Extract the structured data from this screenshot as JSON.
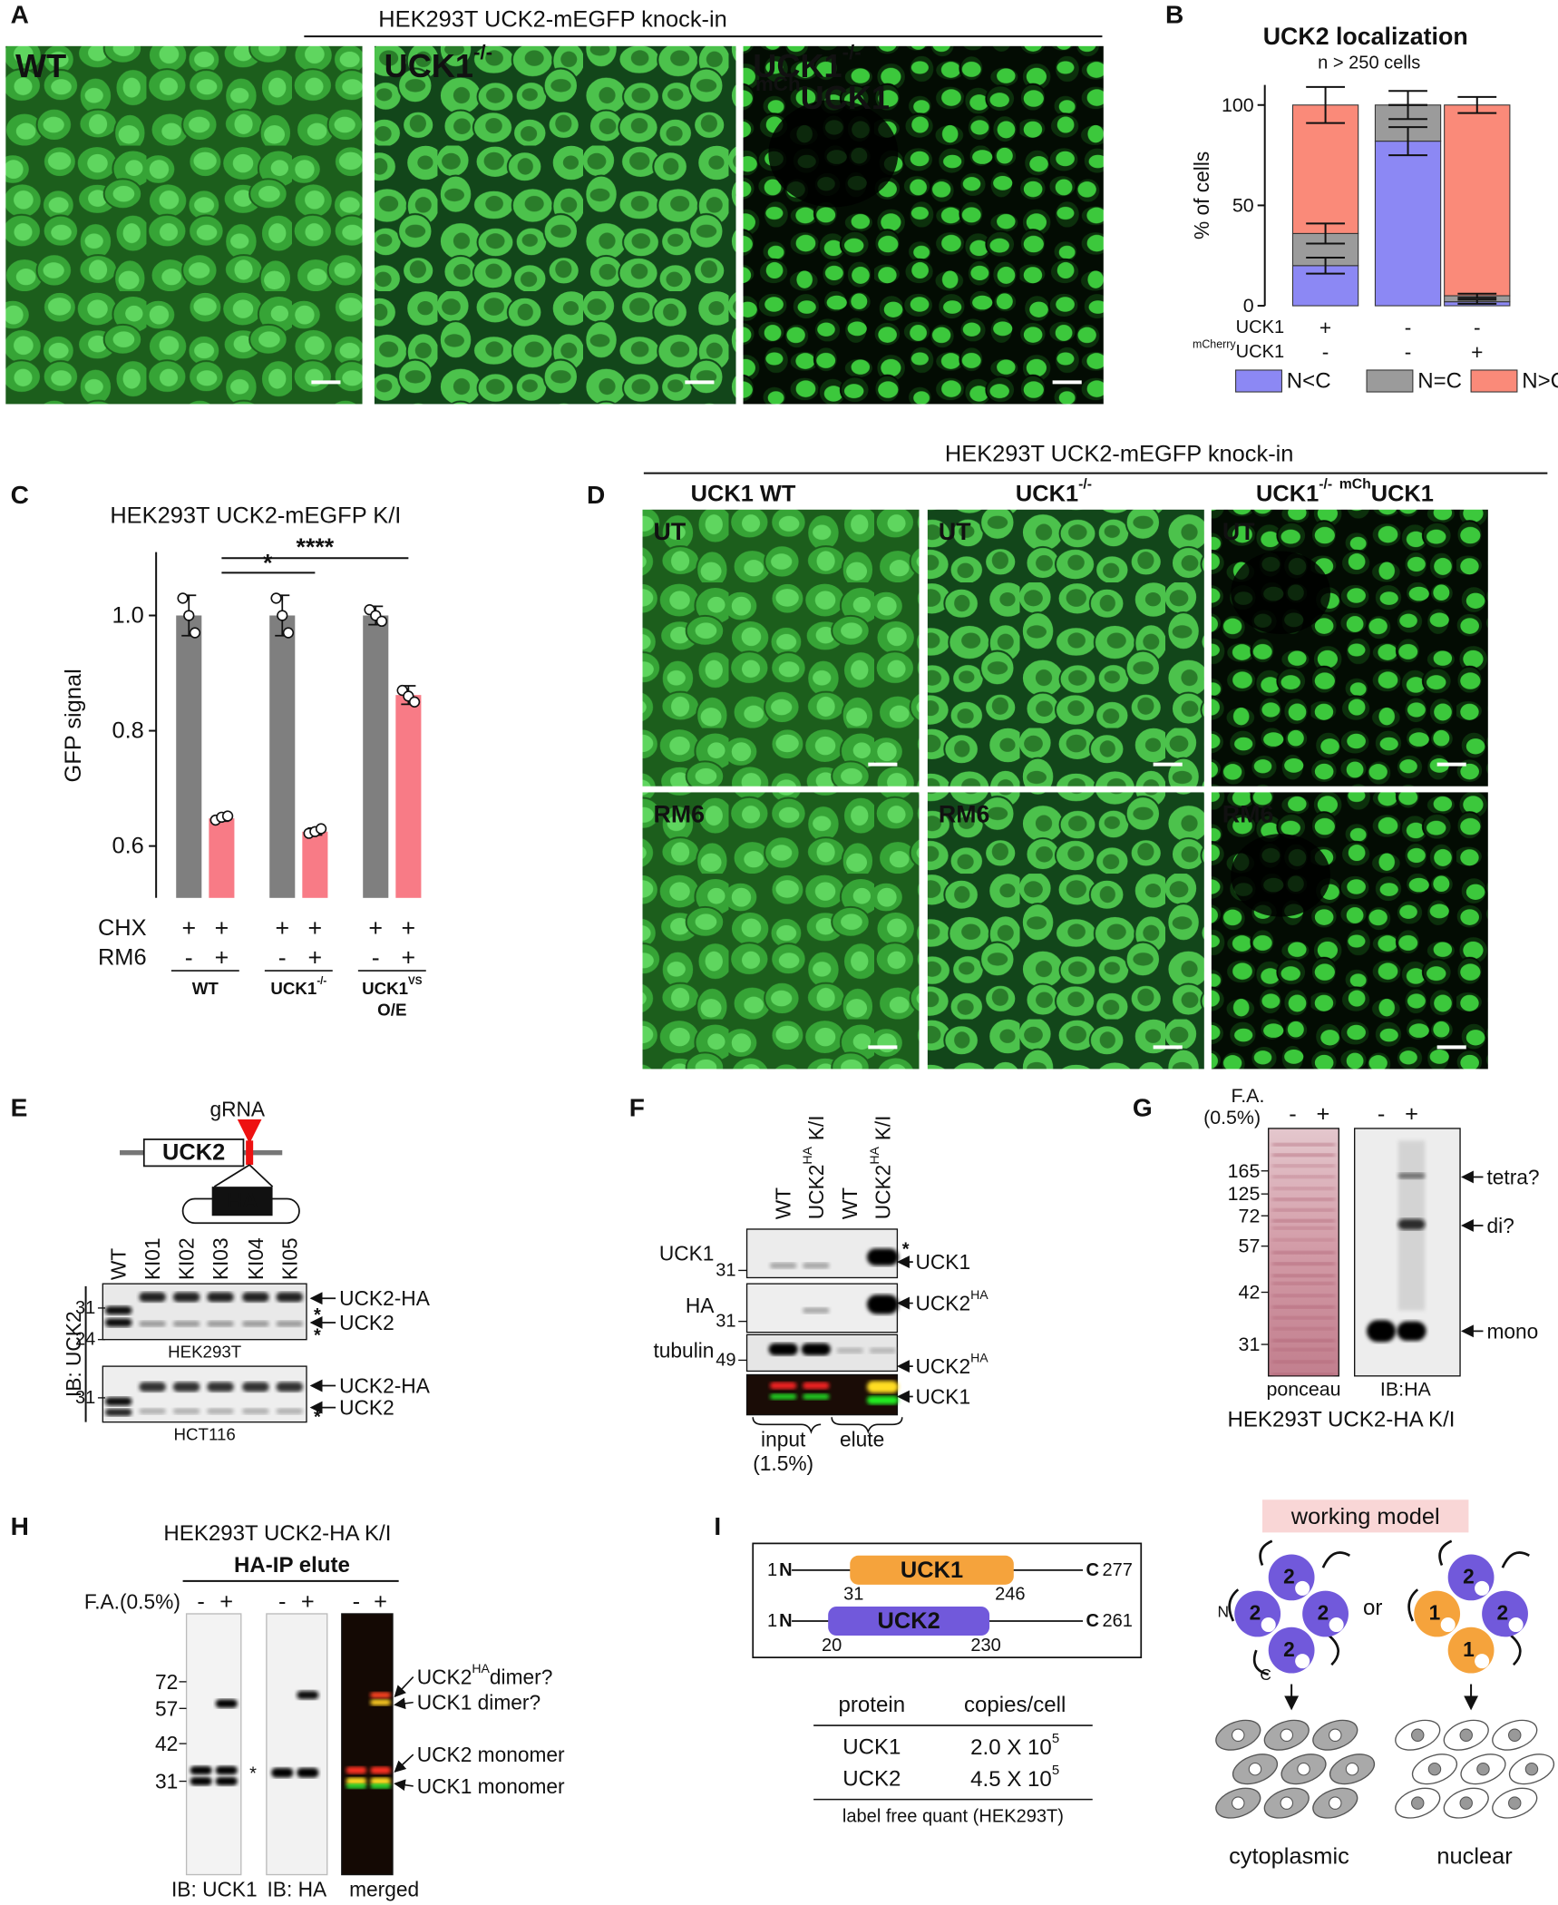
{
  "panel_a": {
    "label": "A",
    "title": "HEK293T UCK2-mEGFP knock-in",
    "images": [
      {
        "label": "WT"
      },
      {
        "label": "UCK1",
        "label_sup": "-/-"
      },
      {
        "label": "UCK1",
        "label_sup": "-/-",
        "label2_sup": "mCh",
        "label2": "UCK1"
      }
    ]
  },
  "chart_data": [
    {
      "type": "stacked-bar",
      "panel_label": "B",
      "title": "UCK2 localization",
      "subtitle": "n > 250 cells",
      "y_label": "% of cells",
      "ylim": [
        0,
        110
      ],
      "yticks": [
        0,
        50,
        100
      ],
      "condition_rows": [
        {
          "name": "UCK1",
          "values": [
            "+",
            "-",
            "-"
          ]
        },
        {
          "name": "UCK1",
          "name_sup": "mCherry",
          "values": [
            "-",
            "-",
            "+"
          ]
        }
      ],
      "series": [
        {
          "name": "N<C",
          "color": "#8c88f4",
          "values": [
            20,
            82,
            2
          ],
          "errors": [
            4,
            7,
            1
          ]
        },
        {
          "name": "N=C",
          "color": "#9b9b9b",
          "values": [
            16,
            18,
            3
          ],
          "errors": [
            5,
            7,
            1
          ]
        },
        {
          "name": "N>C",
          "color": "#fa8a79",
          "values": [
            64,
            0,
            95
          ],
          "errors": [
            9,
            0,
            4
          ]
        }
      ]
    },
    {
      "type": "bar",
      "panel_label": "C",
      "title": "HEK293T UCK2-mEGFP K/I",
      "y_label": "GFP signal",
      "ylim": [
        0.51,
        1.11
      ],
      "yticks": [
        {
          "value": 0.6,
          "label": "0.6"
        },
        {
          "value": 0.8,
          "label": "0.8"
        },
        {
          "value": 1,
          "label": "1.0"
        }
      ],
      "values": [
        1,
        0.648,
        1,
        0.625,
        1,
        0.862
      ],
      "errors": [
        0.035,
        0.005,
        0.035,
        0.006,
        0.016,
        0.016
      ],
      "colors": [
        "#7f7f7f",
        "#f87b86",
        "#7f7f7f",
        "#f87b86",
        "#7f7f7f",
        "#f87b86"
      ],
      "points": [
        [
          1.03,
          1.0,
          0.97
        ],
        [
          0.645,
          0.65,
          0.652
        ],
        [
          1.03,
          1.0,
          0.97
        ],
        [
          0.622,
          0.625,
          0.63
        ],
        [
          1.01,
          1.0,
          0.99
        ],
        [
          0.87,
          0.86,
          0.85
        ]
      ],
      "condition_rows": [
        {
          "name": "CHX",
          "values": [
            "+",
            "+",
            "+",
            "+",
            "+",
            "+"
          ]
        },
        {
          "name": "RM6",
          "values": [
            "-",
            "+",
            "-",
            "+",
            "-",
            "+"
          ]
        }
      ],
      "groups": [
        {
          "label": "WT"
        },
        {
          "label": "UCK1",
          "label_sup": "-/-"
        },
        {
          "label": "UCK1",
          "label_sup": "VS",
          "label2": "O/E"
        }
      ],
      "significance": [
        "*",
        "****"
      ]
    }
  ],
  "panel_d": {
    "label": "D",
    "title": "HEK293T UCK2-mEGFP knock-in",
    "columns": [
      {
        "label": "UCK1 WT"
      },
      {
        "label": "UCK1",
        "label_sup": "-/-"
      },
      {
        "label": "UCK1",
        "label_sup": "-/-",
        "label2_sup": "mCh",
        "label2": "UCK1"
      }
    ],
    "rows": [
      "UT",
      "RM6"
    ]
  },
  "panel_e": {
    "label": "E",
    "grna": "gRNA",
    "gene": "UCK2",
    "tag": "HA",
    "lanes": [
      "WT",
      "KI01",
      "KI02",
      "KI03",
      "KI04",
      "KI05"
    ],
    "blot_label": "IB: UCK2",
    "blots": [
      {
        "cell_line": "HEK293T",
        "markers": [
          31,
          24
        ],
        "bands": [
          "UCK2-HA",
          "UCK2"
        ],
        "asterisks": [
          "*",
          "*"
        ]
      },
      {
        "cell_line": "HCT116",
        "markers": [
          31
        ],
        "bands": [
          "UCK2-HA",
          "UCK2"
        ],
        "asterisks": [
          "*"
        ]
      }
    ]
  },
  "panel_f": {
    "label": "F",
    "lanes": [
      {
        "label": "WT"
      },
      {
        "label": "UCK2",
        "label_sup": "HA",
        "label2": "K/I"
      },
      {
        "label": "WT"
      },
      {
        "label": "UCK2",
        "label_sup": "HA",
        "label2": "K/I"
      }
    ],
    "rows": [
      {
        "label": "UCK1",
        "marker": 31
      },
      {
        "label": "HA",
        "marker": 31
      },
      {
        "label": "tubulin",
        "marker": 49
      }
    ],
    "right_labels": [
      {
        "label": "UCK1",
        "asterisk": "*"
      },
      {
        "label": "UCK2",
        "label_sup": "HA"
      },
      {
        "label": "UCK2",
        "label_sup": "HA"
      },
      {
        "label": "UCK1"
      }
    ],
    "groups": [
      {
        "label": "input",
        "label2": "(1.5%)"
      },
      {
        "label": "elute"
      }
    ]
  },
  "panel_g": {
    "label": "G",
    "treatment": "F.A.",
    "treatment2": "(0.5%)",
    "lanes": [
      "-",
      "+",
      "-",
      "+"
    ],
    "markers": [
      165,
      125,
      72,
      57,
      42,
      31
    ],
    "bands": [
      "tetra?",
      "di?",
      "mono"
    ],
    "blots": [
      "ponceau",
      "IB:HA"
    ],
    "caption": "HEK293T UCK2-HA K/I"
  },
  "panel_h": {
    "label": "H",
    "title": "HEK293T UCK2-HA K/I",
    "subtitle": "HA-IP elute",
    "treatment": "F.A.(0.5%)",
    "lanes": [
      "-",
      "+",
      "-",
      "+",
      "-",
      "+"
    ],
    "markers": [
      72,
      57,
      42,
      31
    ],
    "asterisk": "*",
    "bands": [
      {
        "label": "UCK2",
        "label_sup": "HA",
        "label2": "dimer?"
      },
      {
        "label": "UCK1 dimer?"
      },
      {
        "label": "UCK2 monomer"
      },
      {
        "label": "UCK1 monomer"
      }
    ],
    "blots": [
      "IB: UCK1",
      "IB: HA",
      "merged"
    ]
  },
  "panel_i": {
    "label": "I",
    "domains": [
      {
        "start": 1,
        "n": "N",
        "name": "UCK1",
        "domain_start": 31,
        "domain_end": 246,
        "c": "C",
        "length": 277
      },
      {
        "start": 1,
        "n": "N",
        "name": "UCK2",
        "domain_start": 20,
        "domain_end": 230,
        "c": "C",
        "length": 261
      }
    ],
    "table": {
      "header": [
        "protein",
        "copies/cell"
      ],
      "rows": [
        [
          "UCK1",
          {
            "base": "2.0 X 10",
            "exp": "5"
          }
        ],
        [
          "UCK2",
          {
            "base": "4.5 X 10",
            "exp": "5"
          }
        ]
      ],
      "footnote": "label free quant (HEK293T)"
    },
    "model": {
      "title": "working model",
      "or": "or",
      "uck2": "2",
      "uck1": "1",
      "n_term": "N",
      "c_term": "C",
      "left_caption": "cytoplasmic",
      "right_caption": "nuclear"
    }
  }
}
